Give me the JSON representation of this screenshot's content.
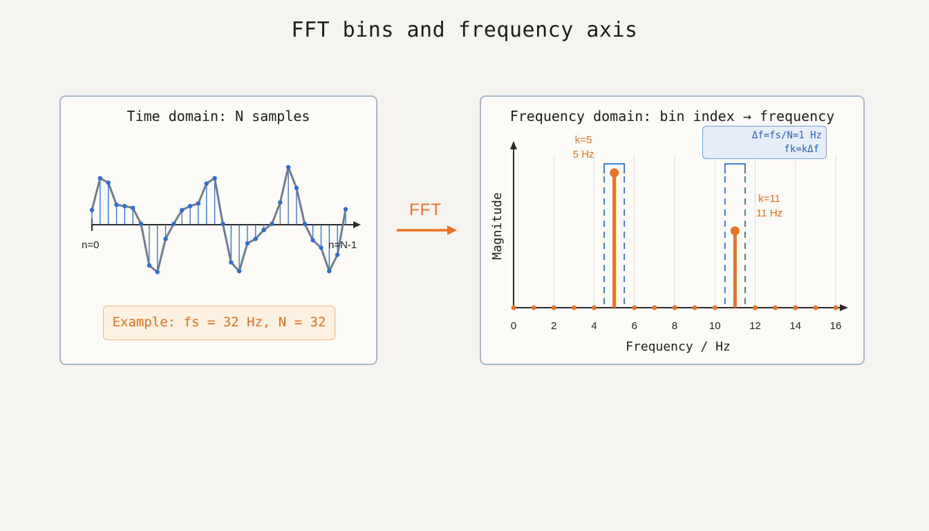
{
  "title": "FFT bins and frequency axis",
  "time_panel": {
    "title": "Time domain: N samples",
    "start_label": "n=0",
    "end_label": "n=N-1",
    "example": "Example: fs = 32 Hz, N = 32",
    "samples": [
      0.33,
      1.05,
      0.95,
      0.45,
      0.42,
      0.38,
      0.02,
      -0.92,
      -1.07,
      -0.32,
      0.02,
      0.33,
      0.42,
      0.48,
      0.93,
      1.05,
      0.02,
      -0.85,
      -1.05,
      -0.42,
      -0.32,
      -0.12,
      0.02,
      0.5,
      1.3,
      0.83,
      0.02,
      -0.35,
      -0.52,
      -1.05,
      -0.68,
      0.35
    ]
  },
  "arrow_label": "FFT",
  "freq_panel": {
    "title": "Frequency domain: bin index → frequency",
    "delta_box": [
      "Δf=fs/N=1 Hz",
      "fk=kΔf"
    ],
    "annotations": [
      {
        "bin": "k=5",
        "freq": "5 Hz"
      },
      {
        "bin": "k=11",
        "freq": "11 Hz"
      }
    ]
  },
  "chart_data": {
    "type": "bar",
    "title": "",
    "xlabel": "Frequency / Hz",
    "ylabel": "Magnitude",
    "xlim": [
      0,
      16
    ],
    "ylim": [
      0,
      1
    ],
    "x_ticks": [
      0,
      2,
      4,
      6,
      8,
      10,
      12,
      14,
      16
    ],
    "bins": [
      0,
      1,
      2,
      3,
      4,
      5,
      6,
      7,
      8,
      9,
      10,
      11,
      12,
      13,
      14,
      15,
      16
    ],
    "values": [
      0,
      0,
      0,
      0,
      0,
      1.0,
      0,
      0,
      0,
      0,
      0,
      0.57,
      0,
      0,
      0,
      0,
      0
    ],
    "highlighted_bins": [
      5,
      11
    ],
    "grid": true,
    "colors": {
      "stem": "#ea7426",
      "grid": "#d7dee8",
      "bin_box": "#2d6fd1"
    }
  },
  "colors": {
    "accent": "#ea7426",
    "blue": "#2d6fd1",
    "wave": "#6f7b8f",
    "panel_border": "#a8b6c9"
  }
}
